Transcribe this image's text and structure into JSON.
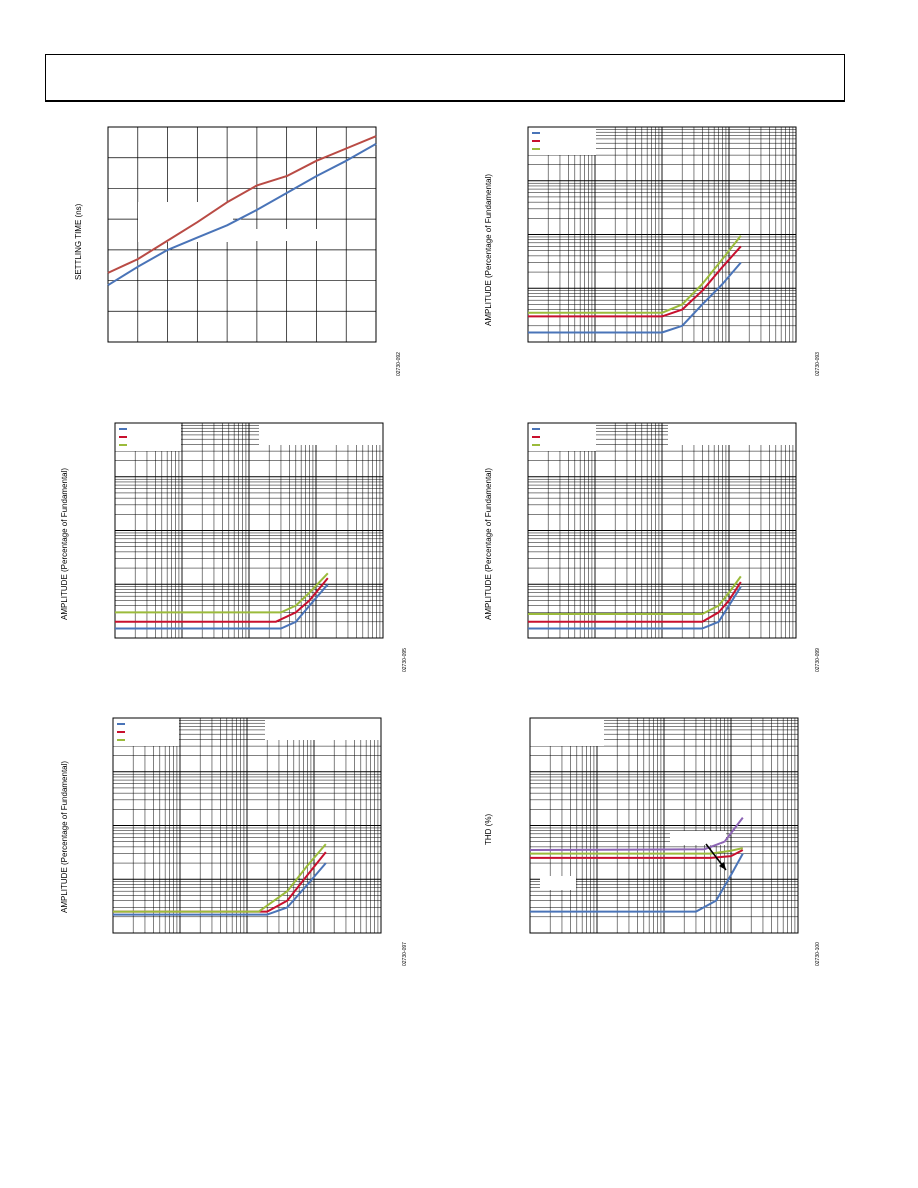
{
  "header": {
    "title": ""
  },
  "colors": {
    "blue": "#4a74b8",
    "red": "#c8102e",
    "rust": "#b94b45",
    "green": "#9bbb3b",
    "purple": "#8c64b4",
    "grid": "#000000"
  },
  "chart_data": [
    {
      "id": "settling",
      "type": "line",
      "ylabel": "SETTLING TIME (ns)",
      "fig_id": "02730-092",
      "grid": true,
      "x_scale": "linear",
      "xlim": [
        0,
        9
      ],
      "ylim": [
        0,
        7
      ],
      "series": [
        {
          "color": "#b94b45",
          "x": [
            0,
            1,
            2,
            3,
            4,
            5,
            6,
            7,
            8,
            9
          ],
          "y": [
            2.25,
            2.7,
            3.3,
            3.9,
            4.55,
            5.1,
            5.4,
            5.9,
            6.3,
            6.7
          ]
        },
        {
          "color": "#4a74b8",
          "x": [
            0,
            1,
            2,
            3,
            4,
            5,
            6,
            7,
            8,
            9
          ],
          "y": [
            1.85,
            2.45,
            3.0,
            3.4,
            3.8,
            4.3,
            4.85,
            5.4,
            5.9,
            6.45
          ]
        }
      ]
    },
    {
      "id": "amp1",
      "type": "line",
      "ylabel": "AMPLITUDE (Percentage of Fundamental)",
      "fig_id": "02730-093",
      "grid": true,
      "x_scale": "log",
      "y_scale": "log",
      "xlim": [
        0.1,
        1000
      ],
      "ylim": [
        0.0001,
        1
      ],
      "legend_colors": [
        "#4a74b8",
        "#c8102e",
        "#9bbb3b"
      ],
      "series": [
        {
          "color": "#4a74b8",
          "x": [
            0.1,
            10,
            20,
            40,
            80,
            150
          ],
          "y": [
            0.00015,
            0.00015,
            0.0002,
            0.0005,
            0.0012,
            0.003
          ]
        },
        {
          "color": "#c8102e",
          "x": [
            0.1,
            10,
            20,
            40,
            80,
            150
          ],
          "y": [
            0.0003,
            0.0003,
            0.0004,
            0.0009,
            0.0025,
            0.006
          ]
        },
        {
          "color": "#9bbb3b",
          "x": [
            0.1,
            10,
            20,
            40,
            80,
            150
          ],
          "y": [
            0.00035,
            0.00035,
            0.0005,
            0.0012,
            0.0035,
            0.0095
          ]
        }
      ]
    },
    {
      "id": "amp2",
      "type": "line",
      "ylabel": "AMPLITUDE (Percentage of Fundamental)",
      "fig_id": "02730-095",
      "grid": true,
      "x_scale": "log",
      "y_scale": "log",
      "xlim": [
        0.1,
        1000
      ],
      "ylim": [
        0.0001,
        1
      ],
      "legend_colors": [
        "#4a74b8",
        "#c8102e",
        "#9bbb3b"
      ],
      "series": [
        {
          "color": "#4a74b8",
          "x": [
            0.1,
            30,
            50,
            80,
            150
          ],
          "y": [
            0.00015,
            0.00015,
            0.0002,
            0.0004,
            0.001
          ]
        },
        {
          "color": "#c8102e",
          "x": [
            0.1,
            25,
            50,
            80,
            150
          ],
          "y": [
            0.0002,
            0.0002,
            0.0003,
            0.0005,
            0.0013
          ]
        },
        {
          "color": "#9bbb3b",
          "x": [
            0.1,
            30,
            50,
            80,
            150
          ],
          "y": [
            0.0003,
            0.0003,
            0.0004,
            0.0007,
            0.0016
          ]
        }
      ]
    },
    {
      "id": "amp3",
      "type": "line",
      "ylabel": "AMPLITUDE (Percentage of Fundamental)",
      "fig_id": "02730-099",
      "grid": true,
      "x_scale": "log",
      "y_scale": "log",
      "xlim": [
        0.1,
        1000
      ],
      "ylim": [
        0.0001,
        1
      ],
      "legend_colors": [
        "#4a74b8",
        "#c8102e",
        "#9bbb3b"
      ],
      "series": [
        {
          "color": "#4a74b8",
          "x": [
            0.1,
            40,
            70,
            100,
            150
          ],
          "y": [
            0.00015,
            0.00015,
            0.0002,
            0.0004,
            0.0009
          ]
        },
        {
          "color": "#c8102e",
          "x": [
            0.1,
            40,
            70,
            100,
            150
          ],
          "y": [
            0.0002,
            0.0002,
            0.0003,
            0.0005,
            0.0011
          ]
        },
        {
          "color": "#9bbb3b",
          "x": [
            0.1,
            40,
            70,
            100,
            150
          ],
          "y": [
            0.00028,
            0.00028,
            0.0004,
            0.0007,
            0.0014
          ]
        }
      ]
    },
    {
      "id": "amp4",
      "type": "line",
      "ylabel": "AMPLITUDE (Percentage of Fundamental)",
      "fig_id": "02730-097",
      "grid": true,
      "x_scale": "log",
      "y_scale": "log",
      "xlim": [
        0.1,
        1000
      ],
      "ylim": [
        0.0001,
        1
      ],
      "legend_colors": [
        "#4a74b8",
        "#c8102e",
        "#9bbb3b"
      ],
      "series": [
        {
          "color": "#4a74b8",
          "x": [
            0.1,
            20,
            40,
            80,
            150
          ],
          "y": [
            0.00022,
            0.00022,
            0.0003,
            0.0008,
            0.002
          ]
        },
        {
          "color": "#c8102e",
          "x": [
            0.1,
            20,
            40,
            80,
            150
          ],
          "y": [
            0.00025,
            0.00025,
            0.0004,
            0.0012,
            0.0032
          ]
        },
        {
          "color": "#9bbb3b",
          "x": [
            0.1,
            15,
            40,
            80,
            150
          ],
          "y": [
            0.00025,
            0.00025,
            0.0006,
            0.0018,
            0.0045
          ]
        }
      ]
    },
    {
      "id": "thd",
      "type": "line",
      "ylabel": "THD (%)",
      "fig_id": "02730-100",
      "grid": true,
      "x_scale": "log",
      "y_scale": "log",
      "xlim": [
        0.1,
        1000
      ],
      "ylim": [
        0.0001,
        1
      ],
      "series": [
        {
          "color": "#4a74b8",
          "x": [
            0.1,
            30,
            60,
            100,
            150
          ],
          "y": [
            0.00025,
            0.00025,
            0.0004,
            0.0012,
            0.003
          ]
        },
        {
          "color": "#c8102e",
          "x": [
            0.1,
            50,
            100,
            150
          ],
          "y": [
            0.0025,
            0.0025,
            0.0027,
            0.0035
          ]
        },
        {
          "color": "#9bbb3b",
          "x": [
            0.1,
            50,
            100,
            150
          ],
          "y": [
            0.003,
            0.003,
            0.0034,
            0.0038
          ]
        },
        {
          "color": "#8c64b4",
          "x": [
            0.1,
            40,
            80,
            150
          ],
          "y": [
            0.0035,
            0.0036,
            0.005,
            0.014
          ]
        }
      ]
    }
  ]
}
